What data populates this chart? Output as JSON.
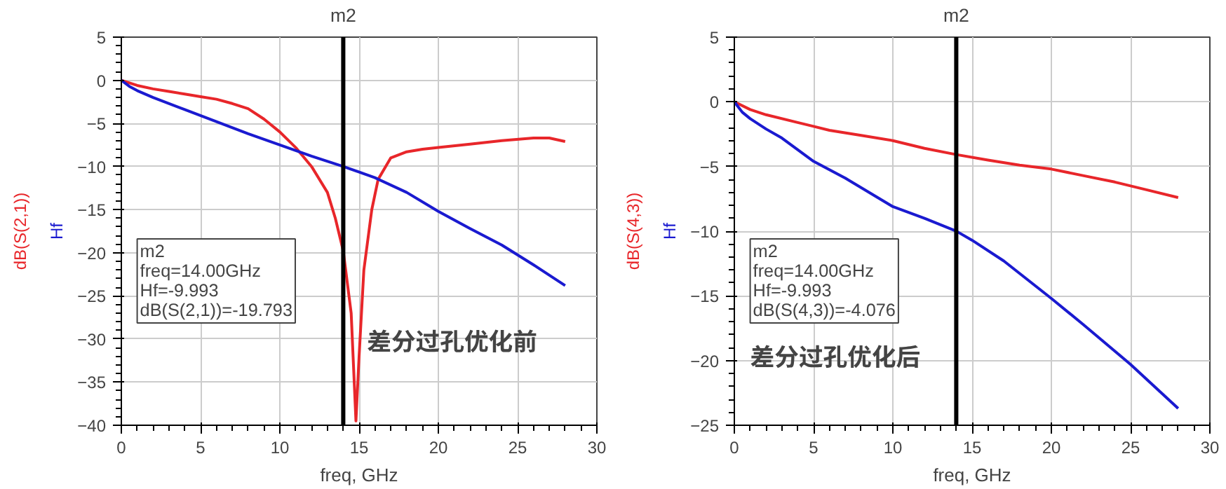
{
  "chart_data": [
    {
      "type": "line",
      "xlabel": "freq, GHz",
      "xlim": [
        0,
        30
      ],
      "xticks": [
        0,
        5,
        10,
        15,
        20,
        25,
        30
      ],
      "ylim": [
        -40,
        5
      ],
      "yticks": [
        -40,
        -35,
        -30,
        -25,
        -20,
        -15,
        -10,
        -5,
        0,
        5
      ],
      "grid": true,
      "series": [
        {
          "name": "dB(S(2,1))",
          "color": "#e8262a",
          "x": [
            0,
            1,
            2,
            3,
            4,
            5,
            6,
            7,
            8,
            9,
            10,
            11,
            12,
            13,
            13.5,
            14,
            14.5,
            14.8,
            15.0,
            15.3,
            15.8,
            16.2,
            17,
            18,
            19,
            20,
            22,
            24,
            26,
            27,
            28
          ],
          "values": [
            0,
            -0.6,
            -1.0,
            -1.3,
            -1.6,
            -1.9,
            -2.2,
            -2.7,
            -3.3,
            -4.5,
            -6.0,
            -7.8,
            -10.0,
            -13.0,
            -16.0,
            -19.8,
            -27.0,
            -39.5,
            -32.0,
            -22.0,
            -15.0,
            -11.5,
            -9.0,
            -8.3,
            -8.0,
            -7.8,
            -7.4,
            -7.0,
            -6.7,
            -6.7,
            -7.1
          ]
        },
        {
          "name": "Hf",
          "color": "#1a1ad0",
          "x": [
            0,
            0.5,
            1,
            2,
            4,
            6,
            8,
            10,
            12,
            14,
            16,
            18,
            20,
            22,
            24,
            26,
            28
          ],
          "values": [
            0,
            -0.7,
            -1.2,
            -2.0,
            -3.4,
            -4.8,
            -6.2,
            -7.5,
            -8.8,
            -9.993,
            -11.3,
            -13.0,
            -15.2,
            -17.2,
            -19.1,
            -21.4,
            -23.8
          ]
        }
      ],
      "ref_lines": [
        {
          "axis": "x",
          "value": 14,
          "label": "m2",
          "color": "#000000"
        }
      ],
      "annotations": [
        "m2\nfreq=14.00GHz\nHf=-9.993\ndB(S(2,1))=-19.793",
        "差分过孔优化前"
      ]
    },
    {
      "type": "line",
      "xlabel": "freq, GHz",
      "xlim": [
        0,
        30
      ],
      "xticks": [
        0,
        5,
        10,
        15,
        20,
        25,
        30
      ],
      "ylim": [
        -25,
        5
      ],
      "yticks": [
        -25,
        -20,
        -15,
        -10,
        -5,
        0,
        5
      ],
      "grid": true,
      "series": [
        {
          "name": "dB(S(4,3))",
          "color": "#e8262a",
          "x": [
            0,
            1,
            2,
            4,
            5,
            6,
            8,
            10,
            12,
            14,
            16,
            18,
            20,
            22,
            24,
            25,
            26,
            28
          ],
          "values": [
            0,
            -0.6,
            -1.0,
            -1.6,
            -1.9,
            -2.2,
            -2.6,
            -3.0,
            -3.6,
            -4.076,
            -4.5,
            -4.9,
            -5.2,
            -5.7,
            -6.2,
            -6.5,
            -6.8,
            -7.4
          ]
        },
        {
          "name": "Hf",
          "color": "#1a1ad0",
          "x": [
            0,
            0.5,
            1,
            2,
            3,
            5,
            7,
            10,
            12,
            14,
            15,
            17,
            20,
            22,
            25,
            28
          ],
          "values": [
            0,
            -0.8,
            -1.3,
            -2.1,
            -2.8,
            -4.6,
            -5.9,
            -8.1,
            -9.0,
            -9.993,
            -10.7,
            -12.3,
            -15.2,
            -17.2,
            -20.3,
            -23.7
          ]
        }
      ],
      "ref_lines": [
        {
          "axis": "x",
          "value": 14,
          "label": "m2",
          "color": "#000000"
        }
      ],
      "annotations": [
        "m2\nfreq=14.00GHz\nHf=-9.993\ndB(S(4,3))=-4.076",
        "差分过孔优化后"
      ]
    }
  ]
}
